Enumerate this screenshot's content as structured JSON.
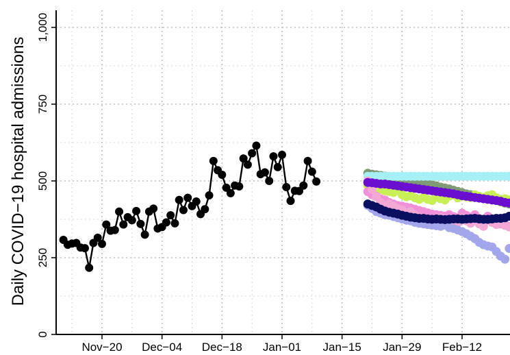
{
  "chart_data": {
    "type": "scatter",
    "title": "",
    "xlabel": "",
    "ylabel": "Daily COVID−19 hospital admissions",
    "x_type": "date",
    "xlim": [
      "2020-11-09",
      "2021-02-22"
    ],
    "ylim": [
      0,
      1000
    ],
    "x_ticks": [
      "2020-11-20",
      "2020-12-04",
      "2020-12-18",
      "2021-01-01",
      "2021-01-15",
      "2021-01-29",
      "2021-02-12"
    ],
    "x_tick_labels": [
      "Nov−20",
      "Dec−04",
      "Dec−18",
      "Jan−01",
      "Jan−15",
      "Jan−29",
      "Feb−12"
    ],
    "y_ticks": [
      0,
      250,
      500,
      750,
      1000
    ],
    "y_tick_labels": [
      "0",
      "250",
      "500",
      "750",
      "1,000"
    ],
    "grid": true,
    "legend": "none",
    "observed": {
      "color": "#000000",
      "mode": "line+markers",
      "start": "2020-11-11",
      "values": [
        308,
        292,
        296,
        298,
        283,
        281,
        217,
        298,
        315,
        295,
        358,
        338,
        340,
        400,
        358,
        382,
        372,
        402,
        360,
        325,
        400,
        410,
        345,
        350,
        365,
        388,
        362,
        438,
        405,
        445,
        418,
        433,
        392,
        408,
        453,
        565,
        535,
        520,
        478,
        460,
        485,
        482,
        573,
        553,
        590,
        615,
        522,
        528,
        500,
        580,
        545,
        585,
        480,
        435,
        468,
        467,
        485,
        565,
        530,
        498
      ]
    },
    "forecast_start": "2021-01-21",
    "series": [
      {
        "color": "#7f9a75",
        "values": [
          525,
          522,
          520,
          518,
          516,
          514,
          512,
          510,
          508,
          505,
          502,
          498,
          495,
          492,
          490,
          487,
          484,
          480,
          477,
          474,
          470,
          466,
          462,
          458,
          455,
          452,
          448,
          445,
          442,
          438,
          436,
          432,
          428,
          425
        ]
      },
      {
        "color": "#a6f0f5",
        "values": [
          515,
          515,
          515,
          515,
          515,
          515,
          515,
          515,
          515,
          515,
          515,
          515,
          515,
          515,
          515,
          515,
          515,
          515,
          515,
          515,
          515,
          515,
          515,
          515,
          515,
          515,
          515,
          515,
          515,
          515,
          515,
          515,
          515,
          515
        ]
      },
      {
        "color": "#c8ef56",
        "values": [
          485,
          480,
          478,
          472,
          468,
          465,
          462,
          470,
          455,
          448,
          452,
          445,
          440,
          446,
          440,
          436,
          448,
          442,
          438,
          450,
          456,
          445,
          452,
          448,
          446,
          455,
          450,
          446,
          452,
          455,
          445,
          440,
          442,
          438
        ]
      },
      {
        "color": "#ef90d8",
        "values": [
          465,
          455,
          450,
          442,
          438,
          430,
          425,
          420,
          418,
          415,
          412,
          408,
          404,
          400,
          396,
          392,
          390,
          388,
          385,
          390,
          384,
          380,
          395,
          388,
          382,
          390,
          378,
          372,
          385,
          368,
          375,
          360,
          358,
          352
        ]
      },
      {
        "color": "#f3a8d6",
        "values": [
          500,
          472,
          448,
          430,
          420,
          425,
          418,
          410,
          405,
          395,
          400,
          388,
          382,
          378,
          375,
          372,
          368,
          380,
          372,
          366,
          378,
          365,
          380,
          370,
          362,
          376,
          360,
          352,
          372,
          365,
          358,
          372,
          355,
          350
        ]
      },
      {
        "color": "#a4a6ec",
        "values": [
          420,
          410,
          400,
          395,
          390,
          388,
          384,
          380,
          376,
          372,
          370,
          365,
          362,
          360,
          358,
          356,
          354,
          352,
          356,
          348,
          345,
          340,
          335,
          328,
          320,
          312,
          300,
          292,
          288,
          285,
          270,
          255,
          245,
          280
        ]
      },
      {
        "color": "#6a0fd0",
        "values": [
          495,
          494,
          492,
          490,
          490,
          488,
          486,
          484,
          482,
          480,
          478,
          476,
          474,
          472,
          470,
          468,
          466,
          464,
          462,
          460,
          458,
          455,
          452,
          450,
          448,
          446,
          444,
          442,
          440,
          438,
          436,
          434,
          430,
          428
        ]
      },
      {
        "color": "#0a0f60",
        "values": [
          425,
          420,
          415,
          408,
          402,
          398,
          395,
          392,
          388,
          385,
          382,
          380,
          378,
          378,
          376,
          375,
          376,
          375,
          374,
          375,
          376,
          376,
          375,
          376,
          377,
          378,
          376,
          375,
          375,
          376,
          378,
          378,
          380,
          385
        ]
      }
    ]
  }
}
